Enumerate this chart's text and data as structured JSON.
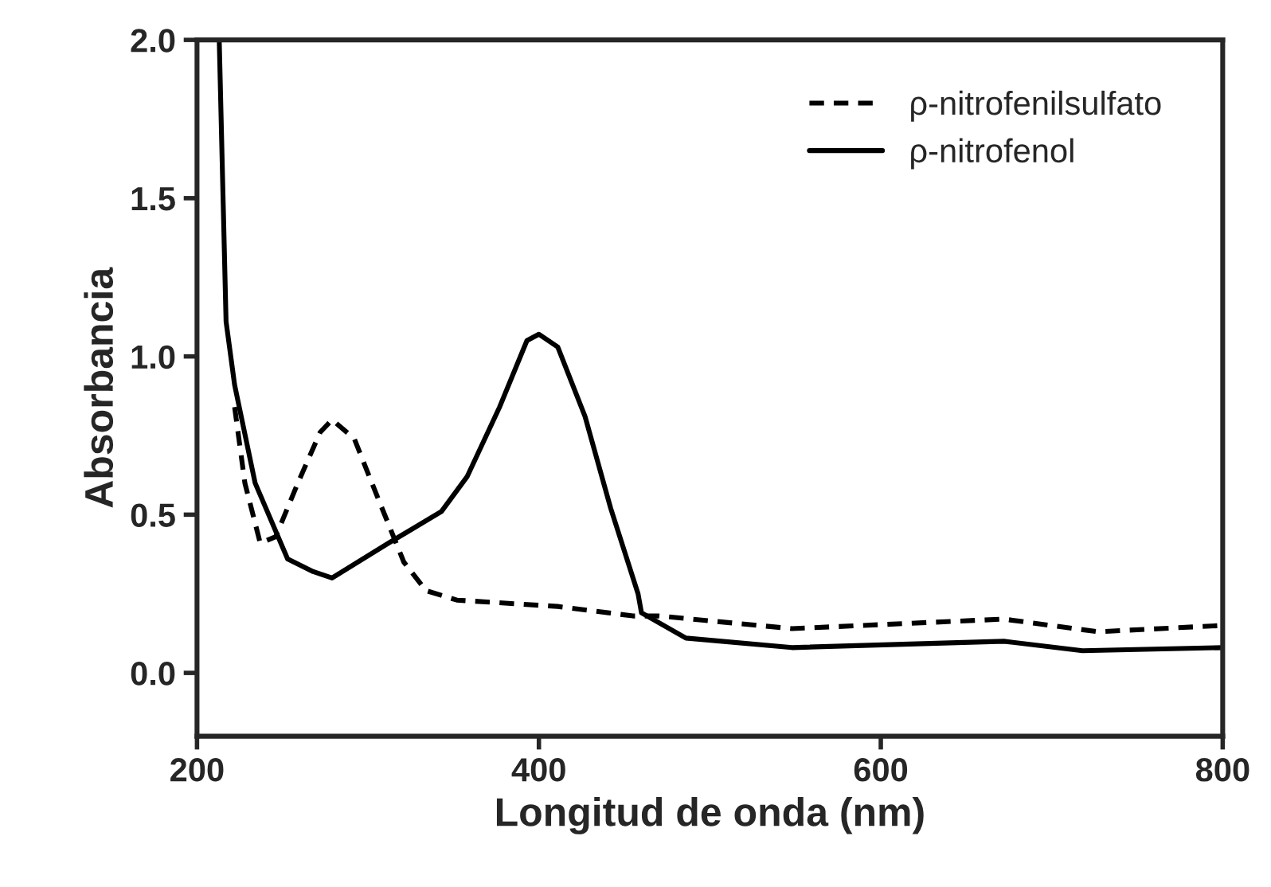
{
  "chart_data": {
    "type": "line",
    "xlabel": "Longitud de onda (nm)",
    "ylabel": "Absorbancia",
    "xlim": [
      200,
      800
    ],
    "ylim": [
      -0.2,
      2.0
    ],
    "xticks": [
      200,
      400,
      600,
      800
    ],
    "yticks": [
      {
        "value": 0,
        "label": "0.0"
      },
      {
        "value": 0.5,
        "label": "0.5"
      },
      {
        "value": 1,
        "label": "1.0"
      },
      {
        "value": 1.5,
        "label": "1.5"
      },
      {
        "value": 2,
        "label": "2.0"
      }
    ],
    "grid": false,
    "legend": "top right",
    "marker": "none",
    "series": [
      {
        "name": "ρ-nitrofenilsulfato",
        "color": "#000000",
        "line_style": "dashed",
        "x": [
          222,
          228,
          237,
          246,
          259,
          272,
          279,
          292,
          306,
          321,
          334,
          352,
          411,
          455,
          470,
          548,
          672,
          727,
          800
        ],
        "values": [
          0.84,
          0.6,
          0.41,
          0.43,
          0.6,
          0.76,
          0.8,
          0.74,
          0.55,
          0.35,
          0.26,
          0.23,
          0.21,
          0.18,
          0.18,
          0.14,
          0.17,
          0.13,
          0.15
        ]
      },
      {
        "name": "ρ-nitrofenol",
        "color": "#000000",
        "line_style": "solid",
        "x": [
          213,
          217,
          222,
          234,
          253,
          268,
          279,
          312,
          343,
          358,
          377,
          393,
          400,
          411,
          427,
          442,
          458,
          460,
          486,
          548,
          672,
          718,
          800
        ],
        "values": [
          2.0,
          1.11,
          0.91,
          0.6,
          0.36,
          0.32,
          0.3,
          0.41,
          0.51,
          0.62,
          0.84,
          1.05,
          1.07,
          1.03,
          0.81,
          0.52,
          0.25,
          0.19,
          0.11,
          0.08,
          0.1,
          0.07,
          0.08
        ]
      }
    ]
  }
}
